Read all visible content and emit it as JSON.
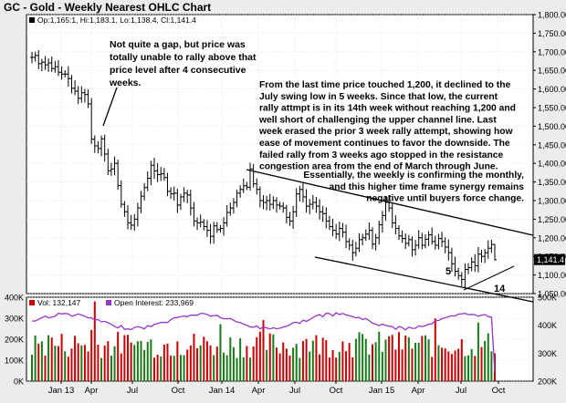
{
  "title": "GC - Gold - Weekly Nearest OHLC Chart",
  "ohlc_legend": "Op:1,165:1, Hi:1,183.1, Lo:1,138.4, Cl:1,141.4",
  "last_price_badge": "1,141.4",
  "annotations": {
    "gap_note": "Not quite a gap, but price was totally unable to rally above that price level after 4 consecutive weeks.",
    "main_note_lines": [
      "From the last time price touched 1,200, it declined to the",
      "July swing low in 5 weeks.  Since that low, the current",
      "rally attmpt is in its 14th week without reaching 1,200 and",
      "well short of challenging the upper channel line.  Last",
      "week erased the prior 3 week rally attempt, showing how",
      "ease of movement continues to favor the downside.  The",
      "failed rally from 3 weeks ago stopped in the resistance",
      "congestion area from the end of March through June."
    ],
    "right_note_lines": [
      "Essentially, the weekly is confirming the monthly,",
      "and this higher time frame synergy remains",
      "negative until buyers force change."
    ],
    "count_5": "5",
    "count_14": "14"
  },
  "volume_legend": {
    "vol_label": "Vol: 132,147",
    "oi_label": "Open Interest: 233,969"
  },
  "colors": {
    "price_bar": "#000000",
    "vol_up": "#1a7a1a",
    "vol_down": "#cc0000",
    "open_interest": "#9933cc",
    "badge_bg": "#000000",
    "badge_text": "#ffffff"
  },
  "chart_data": [
    {
      "type": "ohlc",
      "title": "GC - Gold - Weekly Nearest OHLC Chart",
      "x_tick_labels": [
        "Jan 13",
        "Apr",
        "Jul",
        "Oct",
        "Jan 14",
        "Apr",
        "Jul",
        "Oct",
        "Jan 15",
        "Apr",
        "Jul",
        "Oct"
      ],
      "y_tick_labels": [
        "1,800.00",
        "1,750.00",
        "1,700.00",
        "1,650.00",
        "1,600.00",
        "1,550.00",
        "1,500.00",
        "1,450.00",
        "1,400.00",
        "1,350.00",
        "1,300.00",
        "1,250.00",
        "1,200.00",
        "1,150.00",
        "1,100.00",
        "1,050.00"
      ],
      "ylim": [
        1050,
        1800
      ],
      "grid": true,
      "last_bar": {
        "open": 1165.1,
        "high": 1183.1,
        "low": 1138.4,
        "close": 1141.4
      },
      "close_path_weekly": [
        1685,
        1690,
        1668,
        1672,
        1665,
        1670,
        1655,
        1660,
        1645,
        1640,
        1640,
        1628,
        1602,
        1594,
        1575,
        1590,
        1585,
        1560,
        1465,
        1447,
        1440,
        1466,
        1425,
        1380,
        1385,
        1400,
        1340,
        1290,
        1270,
        1240,
        1234,
        1250,
        1280,
        1312,
        1335,
        1360,
        1395,
        1380,
        1370,
        1372,
        1362,
        1325,
        1318,
        1320,
        1288,
        1310,
        1320,
        1315,
        1280,
        1245,
        1240,
        1242,
        1230,
        1220,
        1204,
        1232,
        1222,
        1225,
        1240,
        1268,
        1280,
        1295,
        1320,
        1330,
        1340,
        1336,
        1385,
        1345,
        1330,
        1300,
        1295,
        1300,
        1290,
        1300,
        1288,
        1285,
        1280,
        1255,
        1245,
        1270,
        1318,
        1330,
        1310,
        1285,
        1290,
        1295,
        1285,
        1270,
        1265,
        1245,
        1230,
        1220,
        1210,
        1225,
        1215,
        1190,
        1180,
        1160,
        1172,
        1195,
        1200,
        1210,
        1220,
        1183,
        1200,
        1235,
        1260,
        1295,
        1280,
        1240,
        1225,
        1205,
        1198,
        1185,
        1195,
        1168,
        1180,
        1200,
        1180,
        1196,
        1208,
        1190,
        1180,
        1198,
        1190,
        1175,
        1160,
        1130,
        1110,
        1098,
        1088,
        1115,
        1120,
        1135,
        1125,
        1156,
        1150,
        1160,
        1172,
        1182,
        1141
      ]
    },
    {
      "type": "bar",
      "title": "",
      "y_tick_labels": [
        "400K",
        "300K",
        "200K",
        "100K",
        "0K"
      ],
      "ylim": [
        0,
        400000
      ],
      "series": [
        {
          "name": "Vol",
          "last_value": 132147
        },
        {
          "name": "Open Interest",
          "last_value": 233969,
          "axis": "right",
          "right_tick_labels": [
            "500K",
            "400K",
            "300K",
            "200K"
          ],
          "ylim_right": [
            200000,
            500000
          ]
        }
      ]
    }
  ]
}
